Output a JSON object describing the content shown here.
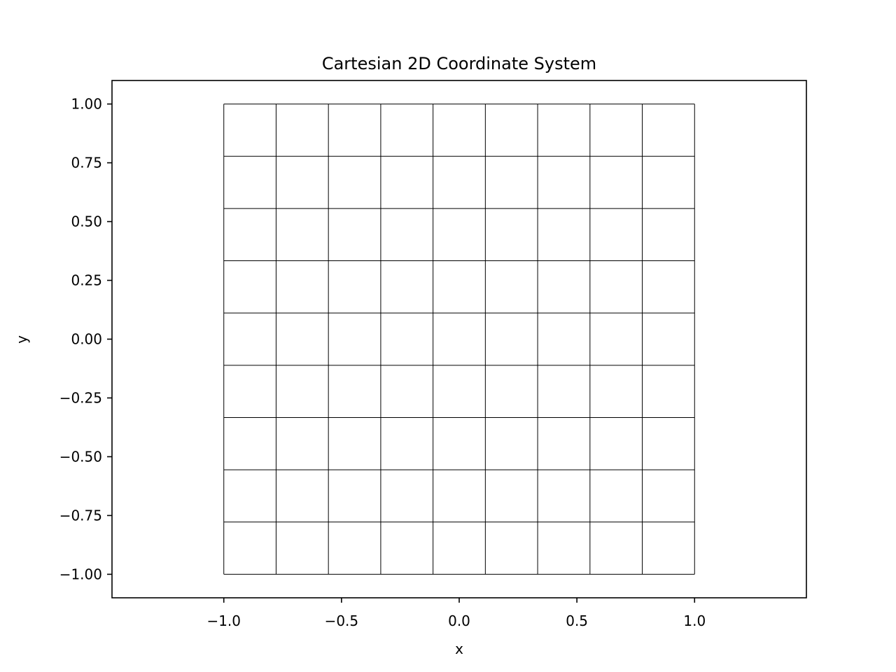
{
  "chart_data": {
    "type": "line",
    "title": "Cartesian 2D Coordinate System",
    "xlabel": "x",
    "ylabel": "y",
    "xlim": [
      -1.475,
      1.475
    ],
    "ylim": [
      -1.1,
      1.1
    ],
    "x_ticks": [
      -1.0,
      -0.5,
      0.0,
      0.5,
      1.0
    ],
    "x_tick_labels": [
      "−1.0",
      "−0.5",
      "0.0",
      "0.5",
      "1.0"
    ],
    "y_ticks": [
      -1.0,
      -0.75,
      -0.5,
      -0.25,
      0.0,
      0.25,
      0.5,
      0.75,
      1.0
    ],
    "y_tick_labels": [
      "−1.00",
      "−0.75",
      "−0.50",
      "−0.25",
      "0.00",
      "0.25",
      "0.50",
      "0.75",
      "1.00"
    ],
    "grid_lines": {
      "vertical_x": [
        -1.0,
        -0.7778,
        -0.5556,
        -0.3333,
        -0.1111,
        0.1111,
        0.3333,
        0.5556,
        0.7778,
        1.0
      ],
      "horizontal_y": [
        -1.0,
        -0.7778,
        -0.5556,
        -0.3333,
        -0.1111,
        0.1111,
        0.3333,
        0.5556,
        0.7778,
        1.0
      ],
      "x_extent": [
        -1.0,
        1.0
      ],
      "y_extent": [
        -1.0,
        1.0
      ],
      "color": "#000000"
    },
    "grid": false,
    "legend": "none"
  }
}
